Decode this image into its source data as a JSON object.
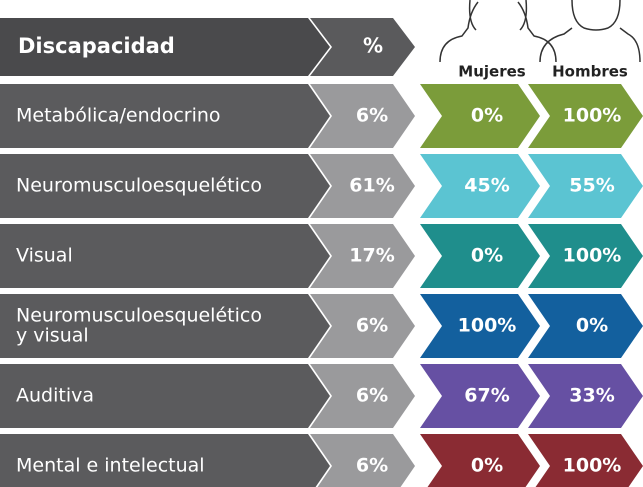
{
  "header": {
    "name": "Discapacidad",
    "pct": "%",
    "women": "Mujeres",
    "men": "Hombres"
  },
  "rows": [
    {
      "name": [
        "Metabólica/endocrino"
      ],
      "pct": "6%",
      "women": "0%",
      "men": "100%",
      "color": "#7b9c3a"
    },
    {
      "name": [
        "Neuromusculoesquelético"
      ],
      "pct": "61%",
      "women": "45%",
      "men": "55%",
      "color": "#5bc4d2"
    },
    {
      "name": [
        "Visual"
      ],
      "pct": "17%",
      "women": "0%",
      "men": "100%",
      "color": "#1f8e8c"
    },
    {
      "name": [
        "Neuromusculoesquelético",
        "y visual"
      ],
      "pct": "6%",
      "women": "100%",
      "men": "0%",
      "color": "#13609e"
    },
    {
      "name": [
        "Auditiva"
      ],
      "pct": "6%",
      "women": "67%",
      "men": "33%",
      "color": "#6650a3"
    },
    {
      "name": [
        "Mental e intelectual"
      ],
      "pct": "6%",
      "women": "0%",
      "men": "100%",
      "color": "#8a2b33"
    }
  ]
}
